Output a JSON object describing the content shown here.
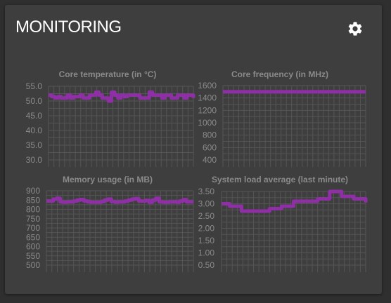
{
  "header": {
    "title": "MONITORING",
    "settings_icon": "gear-icon"
  },
  "colors": {
    "series": "#8e2fa6",
    "grid": "#555555",
    "text": "#8a8a8a"
  },
  "chart_data": [
    {
      "type": "line",
      "title": "Core temperature (in °C)",
      "ylim": [
        30,
        55
      ],
      "yticks": [
        "55.0",
        "50.0",
        "45.0",
        "40.0",
        "35.0",
        "30.0"
      ],
      "values": [
        52.0,
        51.5,
        51.0,
        51.5,
        51.0,
        51.0,
        52.0,
        51.0,
        51.5,
        51.5,
        52.0,
        51.0,
        51.0,
        52.0,
        52.0,
        53.0,
        52.0,
        51.0,
        51.0,
        50.0,
        53.0,
        52.0,
        51.0,
        52.0,
        51.5,
        52.0,
        52.0,
        52.0,
        52.0,
        51.0,
        51.0,
        51.0,
        53.0,
        52.0,
        52.0,
        52.0,
        51.0,
        52.0,
        52.0,
        51.0,
        51.0,
        52.0,
        52.0,
        51.0,
        52.0,
        52.0,
        51.0
      ]
    },
    {
      "type": "line",
      "title": "Core frequency (in MHz)",
      "ylim": [
        400,
        1600
      ],
      "yticks": [
        "1600",
        "1400",
        "1200",
        "1000",
        "800",
        "600",
        "400"
      ],
      "values": [
        1500,
        1500,
        1500,
        1500,
        1500,
        1500,
        1500,
        1500,
        1500,
        1500,
        1500,
        1500,
        1500,
        1500,
        1500,
        1500,
        1500,
        1500,
        1500,
        1500,
        1500,
        1500,
        1500,
        1500,
        1500,
        1500,
        1500,
        1500,
        1500,
        1500,
        1500,
        1500,
        1500,
        1500,
        1500,
        1500,
        1500,
        1500,
        1500,
        1500,
        1500,
        1500,
        1500,
        1500,
        1500,
        1500,
        1500
      ]
    },
    {
      "type": "line",
      "title": "Memory usage (in MB)",
      "ylim": [
        500,
        900
      ],
      "yticks": [
        "900",
        "850",
        "800",
        "750",
        "700",
        "650",
        "600",
        "550",
        "500"
      ],
      "values": [
        845,
        845,
        855,
        860,
        840,
        838,
        840,
        840,
        845,
        850,
        853,
        845,
        840,
        838,
        838,
        838,
        842,
        850,
        855,
        842,
        838,
        840,
        840,
        845,
        850,
        855,
        858,
        845,
        845,
        848,
        838,
        850,
        860,
        840,
        838,
        838,
        840,
        840,
        838,
        845,
        852,
        840,
        840,
        840
      ]
    },
    {
      "type": "line",
      "title": "System load average (last minute)",
      "ylim": [
        0.5,
        3.5
      ],
      "yticks": [
        "3.50",
        "3.00",
        "2.50",
        "2.00",
        "1.50",
        "1.00",
        "0.50"
      ],
      "values": [
        3.0,
        3.0,
        2.9,
        2.9,
        2.9,
        2.7,
        2.7,
        2.7,
        2.7,
        2.7,
        2.7,
        2.7,
        2.8,
        2.8,
        2.8,
        2.9,
        2.9,
        2.9,
        3.1,
        3.1,
        3.1,
        3.1,
        3.1,
        3.1,
        3.2,
        3.2,
        3.2,
        3.5,
        3.5,
        3.5,
        3.3,
        3.3,
        3.3,
        3.2,
        3.2,
        3.2,
        3.05
      ]
    }
  ]
}
